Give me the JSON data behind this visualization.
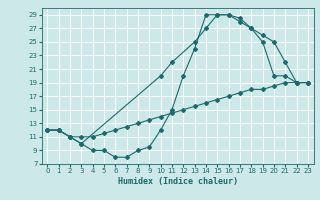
{
  "xlabel": "Humidex (Indice chaleur)",
  "xlim": [
    -0.5,
    23.5
  ],
  "ylim": [
    7,
    30
  ],
  "yticks": [
    7,
    9,
    11,
    13,
    15,
    17,
    19,
    21,
    23,
    25,
    27,
    29
  ],
  "xticks": [
    0,
    1,
    2,
    3,
    4,
    5,
    6,
    7,
    8,
    9,
    10,
    11,
    12,
    13,
    14,
    15,
    16,
    17,
    18,
    19,
    20,
    21,
    22,
    23
  ],
  "bg_color": "#cce8e8",
  "grid_color": "#ffffff",
  "line_color": "#1a6b6b",
  "curve1_x": [
    0,
    1,
    2,
    3,
    4,
    5,
    6,
    7,
    8,
    9,
    10,
    11,
    12,
    13,
    14,
    15,
    16,
    17,
    18,
    19,
    20,
    21,
    22,
    23
  ],
  "curve1_y": [
    12,
    12,
    11,
    10,
    9,
    9,
    8,
    8,
    9,
    9.5,
    12,
    15,
    20,
    24,
    29,
    29,
    29,
    28,
    27,
    25,
    20,
    20,
    19,
    19
  ],
  "curve2_x": [
    0,
    1,
    2,
    3,
    10,
    11,
    13,
    14,
    15,
    16,
    17,
    18,
    19,
    20,
    21,
    22,
    23
  ],
  "curve2_y": [
    12,
    12,
    11,
    10,
    20,
    22,
    25,
    27,
    29,
    29,
    28.5,
    27,
    26,
    25,
    22,
    19,
    19
  ],
  "curve3_x": [
    0,
    1,
    2,
    3,
    4,
    5,
    6,
    7,
    8,
    9,
    10,
    11,
    12,
    13,
    14,
    15,
    16,
    17,
    18,
    19,
    20,
    21,
    22,
    23
  ],
  "curve3_y": [
    12,
    12,
    11,
    11,
    11,
    11.5,
    12,
    12.5,
    13,
    13.5,
    14,
    14.5,
    15,
    15.5,
    16,
    16.5,
    17,
    17.5,
    18,
    18,
    18.5,
    19,
    19,
    19
  ]
}
